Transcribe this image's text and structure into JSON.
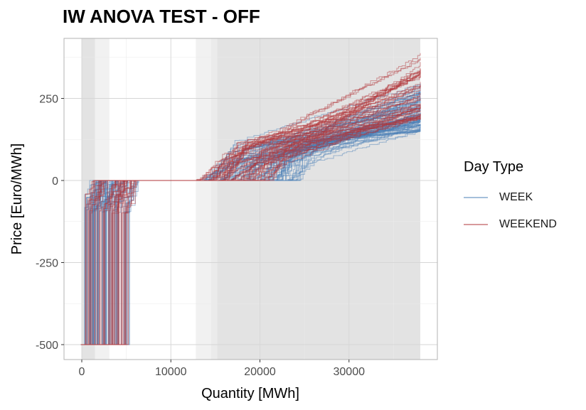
{
  "title": "IW ANOVA TEST - OFF",
  "chart_data": {
    "type": "line",
    "xlabel": "Quantity [MWh]",
    "ylabel": "Price [Euro/MWh]",
    "xlim": [
      -2000,
      40000
    ],
    "ylim": [
      -550,
      430
    ],
    "x_ticks": [
      0,
      10000,
      20000,
      30000
    ],
    "y_ticks": [
      -500,
      -250,
      0,
      250
    ],
    "x_tick_labels": [
      "0",
      "10000",
      "20000",
      "30000"
    ],
    "y_tick_labels": [
      "-500",
      "-250",
      "0",
      "250"
    ],
    "grid": true,
    "legend_title": "Day Type",
    "legend_position": "right",
    "shaded_bands": [
      {
        "x": [
          0,
          1500
        ],
        "level": "dark"
      },
      {
        "x": [
          1500,
          3100
        ],
        "level": "light"
      },
      {
        "x": [
          12800,
          14500
        ],
        "level": "light"
      },
      {
        "x": [
          14500,
          15200
        ],
        "level": "medium"
      },
      {
        "x": [
          15200,
          38000
        ],
        "level": "dark"
      }
    ],
    "series": [
      {
        "name": "WEEK",
        "color": "#4a7fb5",
        "curves": {
          "count": 85,
          "price_floor": -500,
          "floor_end_x": [
            300,
            5400
          ],
          "zero_x": [
            1400,
            6000
          ],
          "rise_start_x": [
            13000,
            24000
          ],
          "end_x": 38000,
          "end_price": [
            150,
            300
          ]
        }
      },
      {
        "name": "WEEKEND",
        "color": "#b2353a",
        "curves": {
          "count": 55,
          "price_floor": -500,
          "floor_end_x": [
            300,
            5400
          ],
          "zero_x": [
            1000,
            6000
          ],
          "rise_start_x": [
            12500,
            21000
          ],
          "end_x": 38000,
          "end_price": [
            190,
            390
          ]
        }
      }
    ]
  }
}
